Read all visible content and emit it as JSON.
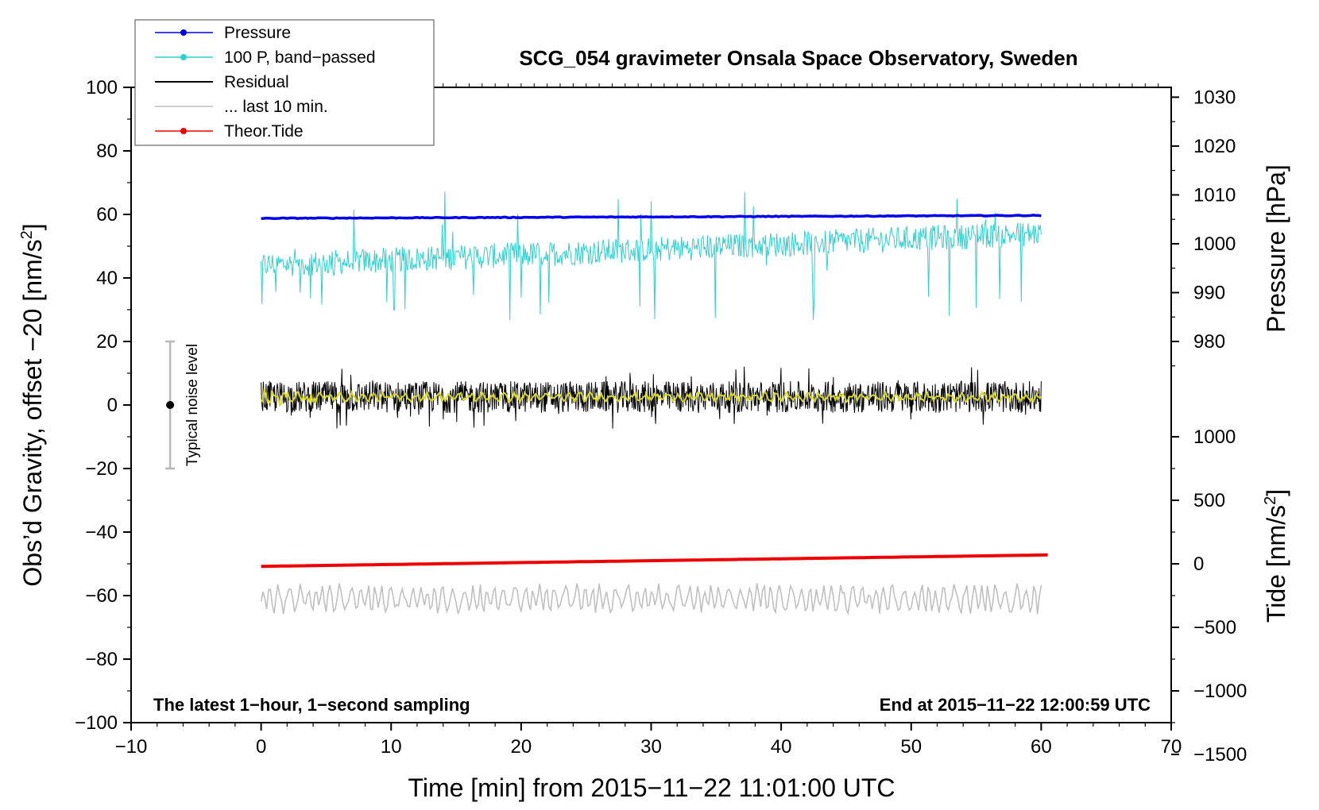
{
  "chart_data": {
    "type": "line",
    "title": "SCG_054 gravimeter Onsala Space Observatory, Sweden",
    "xlabel": "Time [min] from 2015−11−22 11:01:00 UTC",
    "ylabel_left": "Obs’d Gravity, offset −20 [nm/s",
    "ylabel_left_sup": "2",
    "ylabel_left_end": "]",
    "ylabel_right_pressure": "Pressure [hPa]",
    "ylabel_right_tide": "Tide [nm/s",
    "ylabel_right_tide_sup": "2",
    "ylabel_right_tide_end": "]",
    "xlim": [
      -10,
      70
    ],
    "ylim_left": [
      -100,
      100
    ],
    "x_ticks": [
      {
        "v": -10,
        "label": "−10"
      },
      {
        "v": 0,
        "label": "0"
      },
      {
        "v": 10,
        "label": "10"
      },
      {
        "v": 20,
        "label": "20"
      },
      {
        "v": 30,
        "label": "30"
      },
      {
        "v": 40,
        "label": "40"
      },
      {
        "v": 50,
        "label": "50"
      },
      {
        "v": 60,
        "label": "60"
      },
      {
        "v": 70,
        "label": "70"
      }
    ],
    "y_ticks_left": [
      {
        "v": 100,
        "label": "100"
      },
      {
        "v": 80,
        "label": "80"
      },
      {
        "v": 60,
        "label": "60"
      },
      {
        "v": 40,
        "label": "40"
      },
      {
        "v": 20,
        "label": "20"
      },
      {
        "v": 0,
        "label": "0"
      },
      {
        "v": -20,
        "label": "−20"
      },
      {
        "v": -40,
        "label": "−40"
      },
      {
        "v": -60,
        "label": "−60"
      },
      {
        "v": -80,
        "label": "−80"
      },
      {
        "v": -100,
        "label": "−100"
      }
    ],
    "pressure_axis": {
      "mapping": {
        "p0": 980,
        "y0": 20,
        "scale_per_hpa": 1.538
      },
      "ticks": [
        {
          "v": 980,
          "label": "980"
        },
        {
          "v": 990,
          "label": "990"
        },
        {
          "v": 1000,
          "label": "1000"
        },
        {
          "v": 1010,
          "label": "1010"
        },
        {
          "v": 1020,
          "label": "1020"
        },
        {
          "v": 1030,
          "label": "1030"
        }
      ]
    },
    "tide_axis": {
      "mapping": {
        "t0": 0,
        "y0": -50,
        "scale_per_unit": 0.04
      },
      "ticks": [
        {
          "v": 1000,
          "label": "1000"
        },
        {
          "v": 500,
          "label": "500"
        },
        {
          "v": 0,
          "label": "0"
        },
        {
          "v": -500,
          "label": "−500"
        },
        {
          "v": -1000,
          "label": "−1000"
        },
        {
          "v": -1500,
          "label": "−1500"
        }
      ]
    },
    "series": [
      {
        "name": "Pressure",
        "color": "#0000ee",
        "axis": "pressure",
        "x_range": [
          0,
          60
        ],
        "start": 1005.2,
        "end": 1005.8
      },
      {
        "name": "100 P, band−passed",
        "color": "#30d0d0",
        "axis": "left",
        "x_range": [
          0,
          60
        ],
        "start": 44,
        "end": 54,
        "spread": 8,
        "spike_min": 26,
        "spike_max": 68
      },
      {
        "name": "Residual",
        "color": "#000000",
        "axis": "left",
        "x_range": [
          0,
          60
        ],
        "center": 2.5,
        "spread": 5,
        "min": -9,
        "max": 13
      },
      {
        "name": "... last 10 min.",
        "color": "#c0c0c0",
        "axis": "left",
        "x_range": [
          0,
          60
        ],
        "center": -61,
        "spread": 5,
        "min": -70,
        "max": -56
      },
      {
        "name": "Theor.Tide",
        "color": "#ee0000",
        "axis": "tide",
        "x_range": [
          0,
          60.5
        ],
        "start": -20,
        "end": 70
      },
      {
        "name": "smoothed residual",
        "color": "#d8d820",
        "axis": "left",
        "x_range": [
          0,
          60
        ],
        "center": 2.5
      }
    ],
    "noise_bar": {
      "x": -7,
      "center": 0,
      "min": -20,
      "max": 20,
      "label": "Typical noise level"
    },
    "annotations": {
      "left_note": "The latest 1−hour, 1−second sampling",
      "right_note": "End at 2015−11−22 12:00:59 UTC"
    },
    "legend": [
      {
        "label": "Pressure",
        "color": "#0000ee",
        "marker": true
      },
      {
        "label": "100 P, band−passed",
        "color": "#30d0d0",
        "marker": true
      },
      {
        "label": "Residual",
        "color": "#000000",
        "marker": false
      },
      {
        "label": "... last 10 min.",
        "color": "#c0c0c0",
        "marker": false
      },
      {
        "label": "Theor.Tide",
        "color": "#ee0000",
        "marker": true
      }
    ]
  }
}
